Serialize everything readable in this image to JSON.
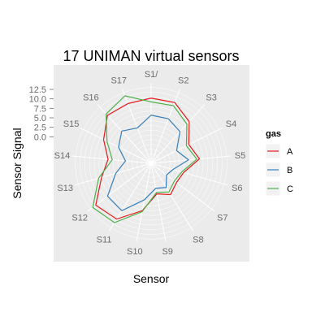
{
  "chart_data": {
    "type": "radar",
    "title": "17 UNIMAN virtual sensors",
    "xlabel": "Sensor",
    "ylabel": "Sensor Signal",
    "categories": [
      "S1",
      "S2",
      "S3",
      "S4",
      "S5",
      "S6",
      "S7",
      "S8",
      "S9",
      "S10",
      "S11",
      "S12",
      "S13",
      "S14",
      "S15",
      "S16",
      "S17"
    ],
    "category_tick_labels": [
      "S1/",
      "S2",
      "S3",
      "S4",
      "S5",
      "S6",
      "S7",
      "S8",
      "S9",
      "S10",
      "S11",
      "S12",
      "S13",
      "S14",
      "S15",
      "S16",
      "S17"
    ],
    "y_ticks": [
      0.0,
      2.5,
      5.0,
      7.5,
      10.0,
      12.5
    ],
    "y_tick_labels": [
      "0.0",
      "2.5",
      "5.0",
      "7.5",
      "10.0",
      "12.5"
    ],
    "ylim": [
      -7,
      14
    ],
    "grid": true,
    "legend": {
      "title": "gas",
      "position": "right"
    },
    "series": [
      {
        "name": "A",
        "color": "#E41A1C",
        "values": [
          10.2,
          10.2,
          7.9,
          4.1,
          5.8,
          1.9,
          1.4,
          2.7,
          1.2,
          5.7,
          10.3,
          11.3,
          6.6,
          4.4,
          7.0,
          10.1,
          9.9
        ]
      },
      {
        "name": "B",
        "color": "#377EB8",
        "values": [
          5.7,
          5.6,
          4.3,
          0.5,
          2.9,
          -1.0,
          -1.9,
          0.5,
          -0.3,
          2.8,
          7.7,
          7.4,
          2.7,
          -0.2,
          2.6,
          4.5,
          3.0
        ]
      },
      {
        "name": "C",
        "color": "#4DAF4A",
        "values": [
          9.2,
          9.3,
          7.0,
          3.4,
          5.1,
          1.4,
          0.7,
          1.9,
          0.8,
          6.0,
          11.4,
          12.3,
          7.4,
          3.3,
          6.0,
          10.6,
          12.1
        ]
      }
    ]
  }
}
